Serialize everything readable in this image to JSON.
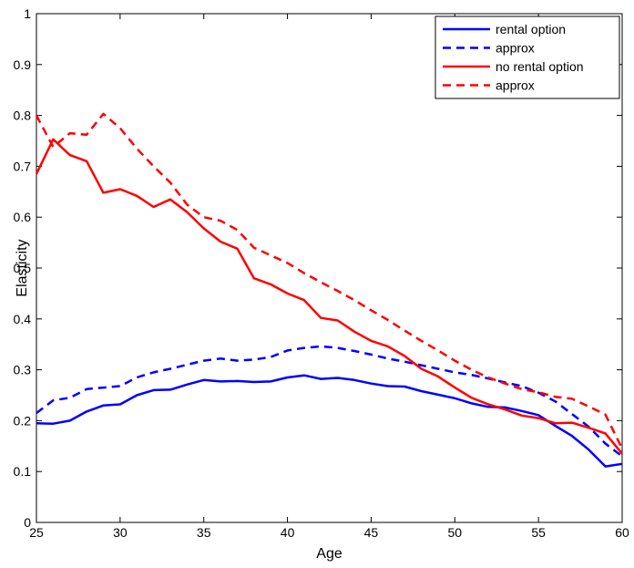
{
  "chart_data": {
    "type": "line",
    "xlabel": "Age",
    "ylabel": "Elasticity",
    "xlim": [
      25,
      60
    ],
    "ylim": [
      0,
      1
    ],
    "xticks": [
      25,
      30,
      35,
      40,
      45,
      50,
      55,
      60
    ],
    "yticks": [
      0,
      0.1,
      0.2,
      0.3,
      0.4,
      0.5,
      0.6,
      0.7,
      0.8,
      0.9,
      1
    ],
    "ytick_labels": [
      "0",
      "0.1",
      "0.2",
      "0.3",
      "0.4",
      "0.5",
      "0.6",
      "0.7",
      "0.8",
      "0.9",
      "1"
    ],
    "grid": false,
    "legend_position": "top-right",
    "x": [
      25,
      26,
      27,
      28,
      29,
      30,
      31,
      32,
      33,
      34,
      35,
      36,
      37,
      38,
      39,
      40,
      41,
      42,
      43,
      44,
      45,
      46,
      47,
      48,
      49,
      50,
      51,
      52,
      53,
      54,
      55,
      56,
      57,
      58,
      59,
      60
    ],
    "series": [
      {
        "name": "rental option",
        "color": "#0000ff",
        "dash": "solid",
        "values": [
          0.195,
          0.194,
          0.2,
          0.218,
          0.23,
          0.232,
          0.25,
          0.26,
          0.261,
          0.271,
          0.28,
          0.277,
          0.278,
          0.276,
          0.277,
          0.285,
          0.289,
          0.282,
          0.284,
          0.28,
          0.273,
          0.268,
          0.267,
          0.258,
          0.251,
          0.244,
          0.234,
          0.227,
          0.226,
          0.219,
          0.211,
          0.19,
          0.17,
          0.143,
          0.11,
          0.115
        ]
      },
      {
        "name": "approx",
        "color": "#0000ff",
        "dash": "dashed",
        "values": [
          0.215,
          0.24,
          0.245,
          0.262,
          0.265,
          0.268,
          0.285,
          0.295,
          0.302,
          0.31,
          0.318,
          0.322,
          0.318,
          0.32,
          0.325,
          0.338,
          0.343,
          0.346,
          0.343,
          0.337,
          0.33,
          0.322,
          0.316,
          0.309,
          0.302,
          0.295,
          0.29,
          0.283,
          0.275,
          0.268,
          0.255,
          0.238,
          0.213,
          0.188,
          0.155,
          0.13
        ]
      },
      {
        "name": "no rental option",
        "color": "#ff0000",
        "dash": "solid",
        "values": [
          0.685,
          0.753,
          0.722,
          0.71,
          0.648,
          0.655,
          0.642,
          0.62,
          0.635,
          0.61,
          0.578,
          0.552,
          0.538,
          0.48,
          0.468,
          0.45,
          0.437,
          0.402,
          0.397,
          0.375,
          0.357,
          0.346,
          0.327,
          0.302,
          0.287,
          0.265,
          0.245,
          0.232,
          0.222,
          0.21,
          0.205,
          0.195,
          0.196,
          0.186,
          0.175,
          0.135
        ]
      },
      {
        "name": "approx",
        "color": "#ff0000",
        "dash": "dashed",
        "values": [
          0.8,
          0.738,
          0.765,
          0.762,
          0.803,
          0.775,
          0.735,
          0.7,
          0.668,
          0.625,
          0.6,
          0.593,
          0.575,
          0.54,
          0.525,
          0.51,
          0.49,
          0.472,
          0.455,
          0.437,
          0.417,
          0.398,
          0.377,
          0.357,
          0.338,
          0.318,
          0.3,
          0.285,
          0.273,
          0.262,
          0.256,
          0.247,
          0.243,
          0.228,
          0.212,
          0.145
        ]
      }
    ]
  }
}
